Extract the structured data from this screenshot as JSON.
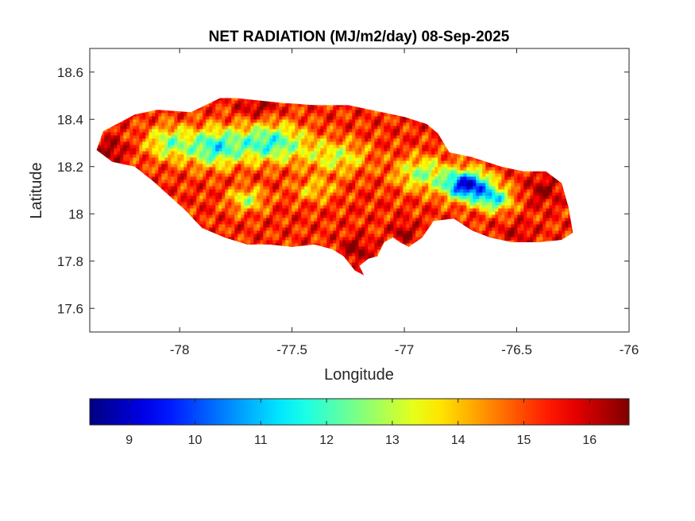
{
  "chart_data": {
    "type": "heatmap",
    "title": "NET RADIATION (MJ/m2/day) 08-Sep-2025",
    "xlabel": "Longitude",
    "ylabel": "Latitude",
    "xlim": [
      -78.4,
      -76
    ],
    "ylim": [
      17.5,
      18.7
    ],
    "xticks": [
      -78,
      -77.5,
      -77,
      -76.5,
      -76
    ],
    "xtick_labels": [
      "-78",
      "-77.5",
      "-77",
      "-76.5",
      "-76"
    ],
    "yticks": [
      17.6,
      17.8,
      18,
      18.2,
      18.4,
      18.6
    ],
    "ytick_labels": [
      "17.6",
      "17.8",
      "18",
      "18.2",
      "18.4",
      "18.6"
    ],
    "grid": false,
    "colormap": "jet",
    "colorbar": {
      "orientation": "horizontal",
      "placement": "below",
      "range": [
        8.4,
        16.6
      ],
      "ticks": [
        9,
        10,
        11,
        12,
        13,
        14,
        15,
        16
      ],
      "tick_labels": [
        "9",
        "10",
        "11",
        "12",
        "13",
        "14",
        "15",
        "16"
      ]
    },
    "region_outline": [
      [
        -78.37,
        18.27
      ],
      [
        -78.34,
        18.35
      ],
      [
        -78.28,
        18.38
      ],
      [
        -78.2,
        18.42
      ],
      [
        -78.1,
        18.44
      ],
      [
        -77.95,
        18.43
      ],
      [
        -77.82,
        18.49
      ],
      [
        -77.75,
        18.49
      ],
      [
        -77.55,
        18.47
      ],
      [
        -77.4,
        18.46
      ],
      [
        -77.25,
        18.46
      ],
      [
        -77.1,
        18.43
      ],
      [
        -77.0,
        18.41
      ],
      [
        -76.9,
        18.38
      ],
      [
        -76.85,
        18.34
      ],
      [
        -76.8,
        18.26
      ],
      [
        -76.7,
        18.24
      ],
      [
        -76.57,
        18.2
      ],
      [
        -76.47,
        18.18
      ],
      [
        -76.37,
        18.18
      ],
      [
        -76.3,
        18.13
      ],
      [
        -76.27,
        18.03
      ],
      [
        -76.25,
        17.92
      ],
      [
        -76.3,
        17.89
      ],
      [
        -76.4,
        17.88
      ],
      [
        -76.52,
        17.88
      ],
      [
        -76.62,
        17.9
      ],
      [
        -76.7,
        17.93
      ],
      [
        -76.78,
        17.98
      ],
      [
        -76.87,
        17.97
      ],
      [
        -76.92,
        17.9
      ],
      [
        -76.98,
        17.86
      ],
      [
        -77.02,
        17.88
      ],
      [
        -77.05,
        17.9
      ],
      [
        -77.09,
        17.88
      ],
      [
        -77.12,
        17.82
      ],
      [
        -77.16,
        17.81
      ],
      [
        -77.2,
        17.78
      ],
      [
        -77.18,
        17.74
      ],
      [
        -77.22,
        17.76
      ],
      [
        -77.27,
        17.82
      ],
      [
        -77.32,
        17.85
      ],
      [
        -77.4,
        17.87
      ],
      [
        -77.5,
        17.86
      ],
      [
        -77.6,
        17.87
      ],
      [
        -77.7,
        17.87
      ],
      [
        -77.8,
        17.9
      ],
      [
        -77.9,
        17.94
      ],
      [
        -77.98,
        18.02
      ],
      [
        -78.05,
        18.08
      ],
      [
        -78.12,
        18.14
      ],
      [
        -78.2,
        18.2
      ],
      [
        -78.3,
        18.22
      ],
      [
        -78.37,
        18.27
      ]
    ],
    "field_components": {
      "base": 15.3,
      "blobs": [
        {
          "lon": -76.72,
          "lat": 18.12,
          "sx": 0.1,
          "sy": 0.06,
          "amp": -6.2
        },
        {
          "lon": -76.6,
          "lat": 18.06,
          "sx": 0.08,
          "sy": 0.05,
          "amp": -3.5
        },
        {
          "lon": -76.92,
          "lat": 18.17,
          "sx": 0.12,
          "sy": 0.07,
          "amp": -2.5
        },
        {
          "lon": -77.6,
          "lat": 18.3,
          "sx": 0.16,
          "sy": 0.08,
          "amp": -3.5
        },
        {
          "lon": -77.85,
          "lat": 18.28,
          "sx": 0.12,
          "sy": 0.08,
          "amp": -3.4
        },
        {
          "lon": -78.05,
          "lat": 18.3,
          "sx": 0.1,
          "sy": 0.07,
          "amp": -2.5
        },
        {
          "lon": -77.3,
          "lat": 18.24,
          "sx": 0.14,
          "sy": 0.07,
          "amp": -2.0
        },
        {
          "lon": -77.7,
          "lat": 18.06,
          "sx": 0.08,
          "sy": 0.05,
          "amp": -2.2
        },
        {
          "lon": -77.4,
          "lat": 18.1,
          "sx": 0.1,
          "sy": 0.05,
          "amp": -1.4
        },
        {
          "lon": -78.3,
          "lat": 18.27,
          "sx": 0.06,
          "sy": 0.05,
          "amp": 1.2
        },
        {
          "lon": -77.22,
          "lat": 17.85,
          "sx": 0.06,
          "sy": 0.05,
          "amp": 1.3
        },
        {
          "lon": -77.0,
          "lat": 17.92,
          "sx": 0.05,
          "sy": 0.04,
          "amp": 1.2
        },
        {
          "lon": -76.38,
          "lat": 18.1,
          "sx": 0.07,
          "sy": 0.06,
          "amp": 1.1
        },
        {
          "lon": -77.65,
          "lat": 18.45,
          "sx": 0.08,
          "sy": 0.04,
          "amp": 1.0
        },
        {
          "lon": -76.5,
          "lat": 17.92,
          "sx": 0.08,
          "sy": 0.04,
          "amp": 0.7
        }
      ],
      "texture_amp": 0.8
    }
  }
}
